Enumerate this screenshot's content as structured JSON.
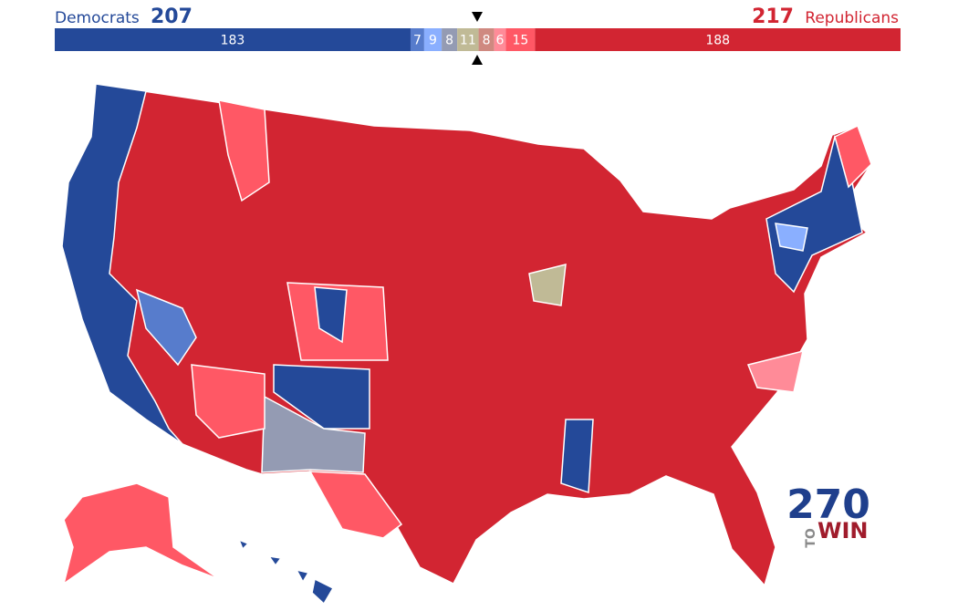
{
  "header": {
    "left_label": "Democrats",
    "left_total": 207,
    "right_total": 217,
    "right_label": "Republicans"
  },
  "bar": {
    "segments": [
      {
        "value": 183,
        "color": "#244999"
      },
      {
        "value": 7,
        "color": "#577ccc"
      },
      {
        "value": 9,
        "color": "#8aafff"
      },
      {
        "value": 8,
        "color": "#949bb3"
      },
      {
        "value": 11,
        "color": "#c0ba96"
      },
      {
        "value": 8,
        "color": "#cf8980"
      },
      {
        "value": 6,
        "color": "#ff8b98"
      },
      {
        "value": 15,
        "color": "#ff5865"
      },
      {
        "value": 188,
        "color": "#d22532"
      }
    ]
  },
  "logo": {
    "number": "270",
    "line1": "TO",
    "line2": "WIN"
  }
}
